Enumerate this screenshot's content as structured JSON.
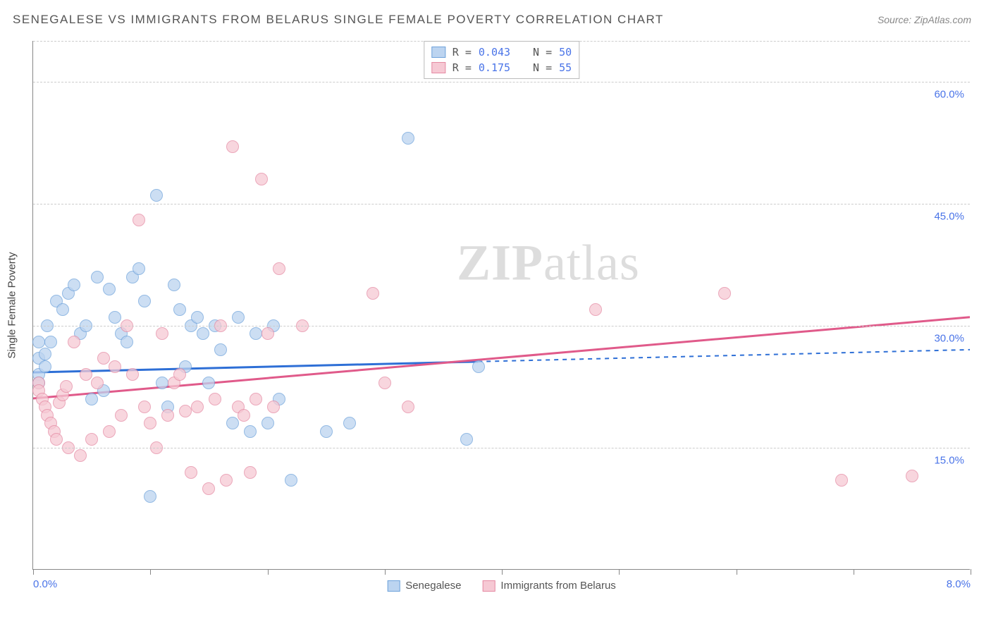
{
  "title": "SENEGALESE VS IMMIGRANTS FROM BELARUS SINGLE FEMALE POVERTY CORRELATION CHART",
  "source": "Source: ZipAtlas.com",
  "ylabel": "Single Female Poverty",
  "watermark_a": "ZIP",
  "watermark_b": "atlas",
  "chart": {
    "type": "scatter",
    "xlim": [
      0,
      8
    ],
    "ylim": [
      0,
      65
    ],
    "yticks": [
      15,
      30,
      45,
      60
    ],
    "ytick_labels": [
      "15.0%",
      "30.0%",
      "45.0%",
      "60.0%"
    ],
    "xticks": [
      0,
      1,
      2,
      3,
      4,
      5,
      6,
      7,
      8
    ],
    "xtick_labels": {
      "0": "0.0%",
      "8": "8.0%"
    },
    "background_color": "#ffffff",
    "grid_color": "#cccccc",
    "axis_color": "#888888",
    "tick_label_color": "#4a74e8",
    "point_radius": 9,
    "series": [
      {
        "name": "Senegalese",
        "fill": "#bcd4f0",
        "stroke": "#6fa3db",
        "line_color": "#2e6fd6",
        "R": "0.043",
        "N": "50",
        "trend": {
          "x1": 0,
          "y1": 24.2,
          "x2": 8,
          "y2": 27.0,
          "solid_until_x": 3.8
        },
        "points": [
          [
            0.05,
            28
          ],
          [
            0.05,
            26
          ],
          [
            0.05,
            24
          ],
          [
            0.05,
            23
          ],
          [
            0.1,
            25
          ],
          [
            0.1,
            26.5
          ],
          [
            0.12,
            30
          ],
          [
            0.15,
            28
          ],
          [
            0.2,
            33
          ],
          [
            0.25,
            32
          ],
          [
            0.3,
            34
          ],
          [
            0.35,
            35
          ],
          [
            0.4,
            29
          ],
          [
            0.45,
            30
          ],
          [
            0.5,
            21
          ],
          [
            0.55,
            36
          ],
          [
            0.6,
            22
          ],
          [
            0.65,
            34.5
          ],
          [
            0.7,
            31
          ],
          [
            0.75,
            29
          ],
          [
            0.8,
            28
          ],
          [
            0.85,
            36
          ],
          [
            0.9,
            37
          ],
          [
            0.95,
            33
          ],
          [
            1.0,
            9
          ],
          [
            1.05,
            46
          ],
          [
            1.1,
            23
          ],
          [
            1.15,
            20
          ],
          [
            1.2,
            35
          ],
          [
            1.25,
            32
          ],
          [
            1.3,
            25
          ],
          [
            1.35,
            30
          ],
          [
            1.4,
            31
          ],
          [
            1.45,
            29
          ],
          [
            1.5,
            23
          ],
          [
            1.55,
            30
          ],
          [
            1.6,
            27
          ],
          [
            1.7,
            18
          ],
          [
            1.75,
            31
          ],
          [
            1.85,
            17
          ],
          [
            1.9,
            29
          ],
          [
            2.0,
            18
          ],
          [
            2.05,
            30
          ],
          [
            2.1,
            21
          ],
          [
            2.2,
            11
          ],
          [
            2.5,
            17
          ],
          [
            2.7,
            18
          ],
          [
            3.2,
            53
          ],
          [
            3.7,
            16
          ],
          [
            3.8,
            25
          ]
        ]
      },
      {
        "name": "Immigrants from Belarus",
        "fill": "#f6c9d4",
        "stroke": "#e58aa3",
        "line_color": "#e05a8a",
        "R": "0.175",
        "N": "55",
        "trend": {
          "x1": 0,
          "y1": 21.0,
          "x2": 8,
          "y2": 31.0,
          "solid_until_x": 8
        },
        "points": [
          [
            0.05,
            23
          ],
          [
            0.05,
            22
          ],
          [
            0.08,
            21
          ],
          [
            0.1,
            20
          ],
          [
            0.12,
            19
          ],
          [
            0.15,
            18
          ],
          [
            0.18,
            17
          ],
          [
            0.2,
            16
          ],
          [
            0.22,
            20.5
          ],
          [
            0.25,
            21.5
          ],
          [
            0.28,
            22.5
          ],
          [
            0.3,
            15
          ],
          [
            0.35,
            28
          ],
          [
            0.4,
            14
          ],
          [
            0.45,
            24
          ],
          [
            0.5,
            16
          ],
          [
            0.55,
            23
          ],
          [
            0.6,
            26
          ],
          [
            0.65,
            17
          ],
          [
            0.7,
            25
          ],
          [
            0.75,
            19
          ],
          [
            0.8,
            30
          ],
          [
            0.85,
            24
          ],
          [
            0.9,
            43
          ],
          [
            0.95,
            20
          ],
          [
            1.0,
            18
          ],
          [
            1.05,
            15
          ],
          [
            1.1,
            29
          ],
          [
            1.15,
            19
          ],
          [
            1.2,
            23
          ],
          [
            1.25,
            24
          ],
          [
            1.3,
            19.5
          ],
          [
            1.35,
            12
          ],
          [
            1.4,
            20
          ],
          [
            1.5,
            10
          ],
          [
            1.55,
            21
          ],
          [
            1.6,
            30
          ],
          [
            1.65,
            11
          ],
          [
            1.7,
            52
          ],
          [
            1.75,
            20
          ],
          [
            1.8,
            19
          ],
          [
            1.85,
            12
          ],
          [
            1.9,
            21
          ],
          [
            1.95,
            48
          ],
          [
            2.0,
            29
          ],
          [
            2.05,
            20
          ],
          [
            2.1,
            37
          ],
          [
            2.3,
            30
          ],
          [
            2.9,
            34
          ],
          [
            3.0,
            23
          ],
          [
            3.2,
            20
          ],
          [
            4.8,
            32
          ],
          [
            5.9,
            34
          ],
          [
            6.9,
            11
          ],
          [
            7.5,
            11.5
          ]
        ]
      }
    ]
  },
  "legend_top": {
    "rows": [
      {
        "swatch_fill": "#bcd4f0",
        "swatch_stroke": "#6fa3db",
        "r_label": "R =",
        "r_val": "0.043",
        "n_label": "N =",
        "n_val": "50"
      },
      {
        "swatch_fill": "#f6c9d4",
        "swatch_stroke": "#e58aa3",
        "r_label": "R =",
        "r_val": " 0.175",
        "n_label": "N =",
        "n_val": "55"
      }
    ]
  },
  "legend_bottom": {
    "items": [
      {
        "swatch_fill": "#bcd4f0",
        "swatch_stroke": "#6fa3db",
        "label": "Senegalese"
      },
      {
        "swatch_fill": "#f6c9d4",
        "swatch_stroke": "#e58aa3",
        "label": "Immigrants from Belarus"
      }
    ]
  }
}
